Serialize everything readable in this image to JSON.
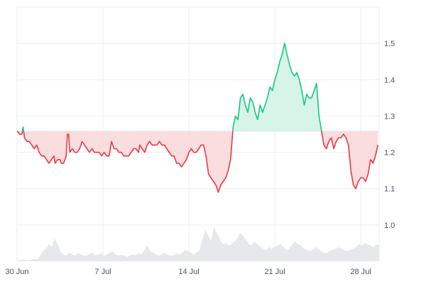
{
  "chart_data": {
    "type": "area",
    "baseline": 1.258,
    "ylim": [
      0.9,
      1.6
    ],
    "yticks": [
      1.0,
      1.1,
      1.2,
      1.3,
      1.4,
      1.5
    ],
    "ytick_labels": [
      "1.0",
      "1.1",
      "1.2",
      "1.3",
      "1.4",
      "1.5"
    ],
    "x_domain_days": [
      0,
      29.5
    ],
    "xtick_days": [
      0,
      7,
      14,
      21,
      28
    ],
    "xtick_labels": [
      "30 Jun",
      "7 Jul",
      "14 Jul",
      "21 Jul",
      "28 Jul"
    ],
    "colors": {
      "up_line": "#16c784",
      "up_fill": "#d2f3e4",
      "down_line": "#ea3943",
      "down_fill": "#f9d9da",
      "baseline": "#c7c7c7",
      "volume": "#e6e8ec",
      "grid": "#eeeeee"
    },
    "grid": true,
    "price": [
      [
        0.0,
        1.26
      ],
      [
        0.2,
        1.25
      ],
      [
        0.4,
        1.25
      ],
      [
        0.5,
        1.27
      ],
      [
        0.6,
        1.24
      ],
      [
        0.8,
        1.23
      ],
      [
        1.0,
        1.23
      ],
      [
        1.2,
        1.22
      ],
      [
        1.4,
        1.21
      ],
      [
        1.6,
        1.22
      ],
      [
        1.8,
        1.2
      ],
      [
        2.0,
        1.19
      ],
      [
        2.2,
        1.19
      ],
      [
        2.4,
        1.18
      ],
      [
        2.6,
        1.17
      ],
      [
        2.8,
        1.18
      ],
      [
        3.0,
        1.19
      ],
      [
        3.1,
        1.17
      ],
      [
        3.3,
        1.18
      ],
      [
        3.5,
        1.18
      ],
      [
        3.6,
        1.17
      ],
      [
        3.8,
        1.17
      ],
      [
        4.0,
        1.19
      ],
      [
        4.1,
        1.25
      ],
      [
        4.2,
        1.25
      ],
      [
        4.3,
        1.2
      ],
      [
        4.5,
        1.21
      ],
      [
        4.7,
        1.2
      ],
      [
        4.9,
        1.2
      ],
      [
        5.1,
        1.21
      ],
      [
        5.3,
        1.23
      ],
      [
        5.5,
        1.22
      ],
      [
        5.7,
        1.21
      ],
      [
        5.9,
        1.2
      ],
      [
        6.1,
        1.21
      ],
      [
        6.3,
        1.2
      ],
      [
        6.5,
        1.2
      ],
      [
        6.7,
        1.2
      ],
      [
        6.9,
        1.19
      ],
      [
        7.1,
        1.2
      ],
      [
        7.3,
        1.19
      ],
      [
        7.5,
        1.19
      ],
      [
        7.7,
        1.23
      ],
      [
        7.9,
        1.21
      ],
      [
        8.1,
        1.21
      ],
      [
        8.3,
        1.2
      ],
      [
        8.5,
        1.2
      ],
      [
        8.7,
        1.19
      ],
      [
        8.9,
        1.19
      ],
      [
        9.1,
        1.19
      ],
      [
        9.3,
        1.2
      ],
      [
        9.5,
        1.21
      ],
      [
        9.7,
        1.21
      ],
      [
        9.9,
        1.2
      ],
      [
        10.0,
        1.22
      ],
      [
        10.2,
        1.21
      ],
      [
        10.4,
        1.2
      ],
      [
        10.6,
        1.22
      ],
      [
        10.8,
        1.23
      ],
      [
        11.0,
        1.22
      ],
      [
        11.2,
        1.22
      ],
      [
        11.4,
        1.22
      ],
      [
        11.6,
        1.23
      ],
      [
        11.8,
        1.22
      ],
      [
        12.0,
        1.22
      ],
      [
        12.2,
        1.21
      ],
      [
        12.4,
        1.2
      ],
      [
        12.6,
        1.19
      ],
      [
        12.8,
        1.19
      ],
      [
        13.0,
        1.17
      ],
      [
        13.2,
        1.17
      ],
      [
        13.4,
        1.16
      ],
      [
        13.6,
        1.17
      ],
      [
        13.8,
        1.18
      ],
      [
        14.0,
        1.2
      ],
      [
        14.2,
        1.21
      ],
      [
        14.4,
        1.2
      ],
      [
        14.6,
        1.2
      ],
      [
        14.8,
        1.21
      ],
      [
        15.0,
        1.22
      ],
      [
        15.2,
        1.22
      ],
      [
        15.4,
        1.19
      ],
      [
        15.6,
        1.14
      ],
      [
        15.8,
        1.13
      ],
      [
        16.0,
        1.12
      ],
      [
        16.2,
        1.11
      ],
      [
        16.4,
        1.09
      ],
      [
        16.6,
        1.11
      ],
      [
        16.8,
        1.12
      ],
      [
        17.0,
        1.13
      ],
      [
        17.2,
        1.15
      ],
      [
        17.4,
        1.18
      ],
      [
        17.6,
        1.27
      ],
      [
        17.8,
        1.3
      ],
      [
        18.0,
        1.29
      ],
      [
        18.2,
        1.35
      ],
      [
        18.4,
        1.36
      ],
      [
        18.6,
        1.33
      ],
      [
        18.8,
        1.31
      ],
      [
        19.0,
        1.35
      ],
      [
        19.2,
        1.34
      ],
      [
        19.4,
        1.31
      ],
      [
        19.6,
        1.29
      ],
      [
        19.8,
        1.33
      ],
      [
        20.0,
        1.31
      ],
      [
        20.2,
        1.33
      ],
      [
        20.4,
        1.35
      ],
      [
        20.6,
        1.38
      ],
      [
        20.8,
        1.37
      ],
      [
        21.0,
        1.4
      ],
      [
        21.2,
        1.42
      ],
      [
        21.4,
        1.45
      ],
      [
        21.6,
        1.47
      ],
      [
        21.8,
        1.5
      ],
      [
        22.0,
        1.47
      ],
      [
        22.2,
        1.44
      ],
      [
        22.4,
        1.42
      ],
      [
        22.6,
        1.41
      ],
      [
        22.8,
        1.42
      ],
      [
        23.0,
        1.4
      ],
      [
        23.2,
        1.37
      ],
      [
        23.4,
        1.33
      ],
      [
        23.6,
        1.36
      ],
      [
        23.8,
        1.35
      ],
      [
        24.0,
        1.35
      ],
      [
        24.2,
        1.37
      ],
      [
        24.4,
        1.39
      ],
      [
        24.6,
        1.3
      ],
      [
        24.8,
        1.26
      ],
      [
        25.0,
        1.22
      ],
      [
        25.2,
        1.21
      ],
      [
        25.4,
        1.23
      ],
      [
        25.6,
        1.24
      ],
      [
        25.8,
        1.21
      ],
      [
        26.0,
        1.23
      ],
      [
        26.2,
        1.24
      ],
      [
        26.4,
        1.24
      ],
      [
        26.6,
        1.25
      ],
      [
        26.8,
        1.24
      ],
      [
        27.0,
        1.22
      ],
      [
        27.2,
        1.15
      ],
      [
        27.4,
        1.11
      ],
      [
        27.6,
        1.1
      ],
      [
        27.8,
        1.12
      ],
      [
        28.0,
        1.13
      ],
      [
        28.2,
        1.13
      ],
      [
        28.4,
        1.12
      ],
      [
        28.6,
        1.14
      ],
      [
        28.8,
        1.18
      ],
      [
        29.0,
        1.17
      ],
      [
        29.2,
        1.19
      ],
      [
        29.4,
        1.22
      ],
      [
        29.6,
        1.26
      ],
      [
        29.8,
        1.27
      ],
      [
        30.0,
        1.25
      ],
      [
        30.2,
        1.26
      ],
      [
        30.4,
        1.24
      ],
      [
        30.6,
        1.21
      ],
      [
        30.8,
        1.22
      ],
      [
        31.0,
        1.23
      ]
    ],
    "volume": [
      0.02,
      0.02,
      0.03,
      0.02,
      0.02,
      0.03,
      0.04,
      0.03,
      0.1,
      0.18,
      0.22,
      0.3,
      0.25,
      0.4,
      0.3,
      0.18,
      0.12,
      0.1,
      0.15,
      0.12,
      0.1,
      0.14,
      0.12,
      0.1,
      0.1,
      0.12,
      0.15,
      0.1,
      0.12,
      0.14,
      0.1,
      0.12,
      0.15,
      0.18,
      0.12,
      0.1,
      0.12,
      0.1,
      0.08,
      0.1,
      0.12,
      0.1,
      0.14,
      0.12,
      0.2,
      0.28,
      0.18,
      0.15,
      0.12,
      0.1,
      0.12,
      0.14,
      0.12,
      0.1,
      0.1,
      0.14,
      0.12,
      0.15,
      0.2,
      0.18,
      0.15,
      0.12,
      0.16,
      0.18,
      0.4,
      0.55,
      0.45,
      0.35,
      0.6,
      0.5,
      0.4,
      0.3,
      0.32,
      0.28,
      0.3,
      0.35,
      0.4,
      0.5,
      0.45,
      0.38,
      0.3,
      0.28,
      0.35,
      0.3,
      0.25,
      0.22,
      0.2,
      0.25,
      0.22,
      0.25,
      0.28,
      0.3,
      0.25,
      0.2,
      0.22,
      0.3,
      0.35,
      0.3,
      0.28,
      0.22,
      0.2,
      0.18,
      0.2,
      0.25,
      0.22,
      0.18,
      0.15,
      0.15,
      0.18,
      0.2,
      0.22,
      0.25,
      0.22,
      0.2,
      0.18,
      0.2,
      0.22,
      0.25,
      0.3,
      0.28,
      0.32,
      0.3,
      0.28,
      0.25,
      0.3,
      0.28
    ],
    "volume_max_fraction": 0.8
  }
}
